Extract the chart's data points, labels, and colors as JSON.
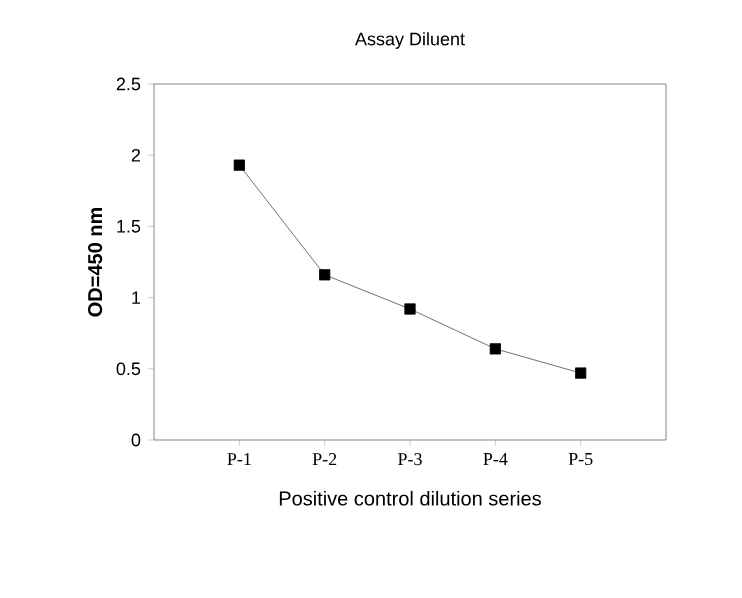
{
  "chart_data": {
    "type": "line",
    "title": "Assay Diluent",
    "xlabel": "Positive control dilution series",
    "ylabel": "OD=450 nm",
    "categories": [
      "P-1",
      "P-2",
      "P-3",
      "P-4",
      "P-5"
    ],
    "series": [
      {
        "color": "#000000",
        "values": [
          1.93,
          1.16,
          0.92,
          0.64,
          0.47
        ]
      }
    ],
    "ylim": [
      0,
      2.5
    ],
    "yticks": [
      0,
      0.5,
      1,
      1.5,
      2,
      2.5
    ],
    "grid": false,
    "marker": "square",
    "line_style": "solid"
  }
}
